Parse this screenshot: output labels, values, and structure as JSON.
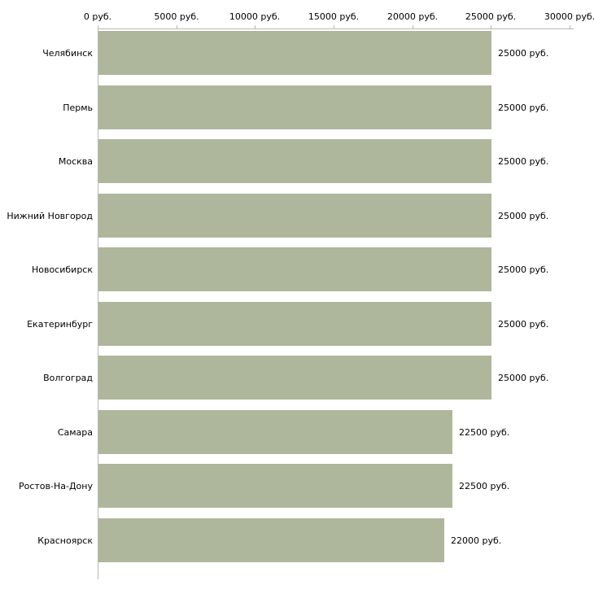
{
  "chart_data": {
    "type": "bar",
    "orientation": "horizontal",
    "title": "",
    "xlabel": "",
    "ylabel": "",
    "categories": [
      "Челябинск",
      "Пермь",
      "Москва",
      "Нижний Новгород",
      "Новосибирск",
      "Екатеринбург",
      "Волгоград",
      "Самара",
      "Ростов-На-Дону",
      "Красноярск"
    ],
    "values": [
      25000,
      25000,
      25000,
      25000,
      25000,
      25000,
      25000,
      22500,
      22500,
      22000
    ],
    "value_labels": [
      "25000 руб.",
      "25000 руб.",
      "25000 руб.",
      "25000 руб.",
      "25000 руб.",
      "25000 руб.",
      "25000 руб.",
      "22500 руб.",
      "22500 руб.",
      "22000 руб."
    ],
    "x_axis": {
      "min": 0,
      "max": 30000,
      "ticks": [
        0,
        5000,
        10000,
        15000,
        20000,
        25000,
        30000
      ],
      "tick_labels": [
        "0 руб.",
        "5000 руб.",
        "10000 руб.",
        "15000 руб.",
        "20000 руб.",
        "25000 руб.",
        "30000 руб."
      ]
    },
    "bar_color": "#aeb79b",
    "axis_color": "#b8b8b8",
    "grid": false,
    "legend": false
  }
}
